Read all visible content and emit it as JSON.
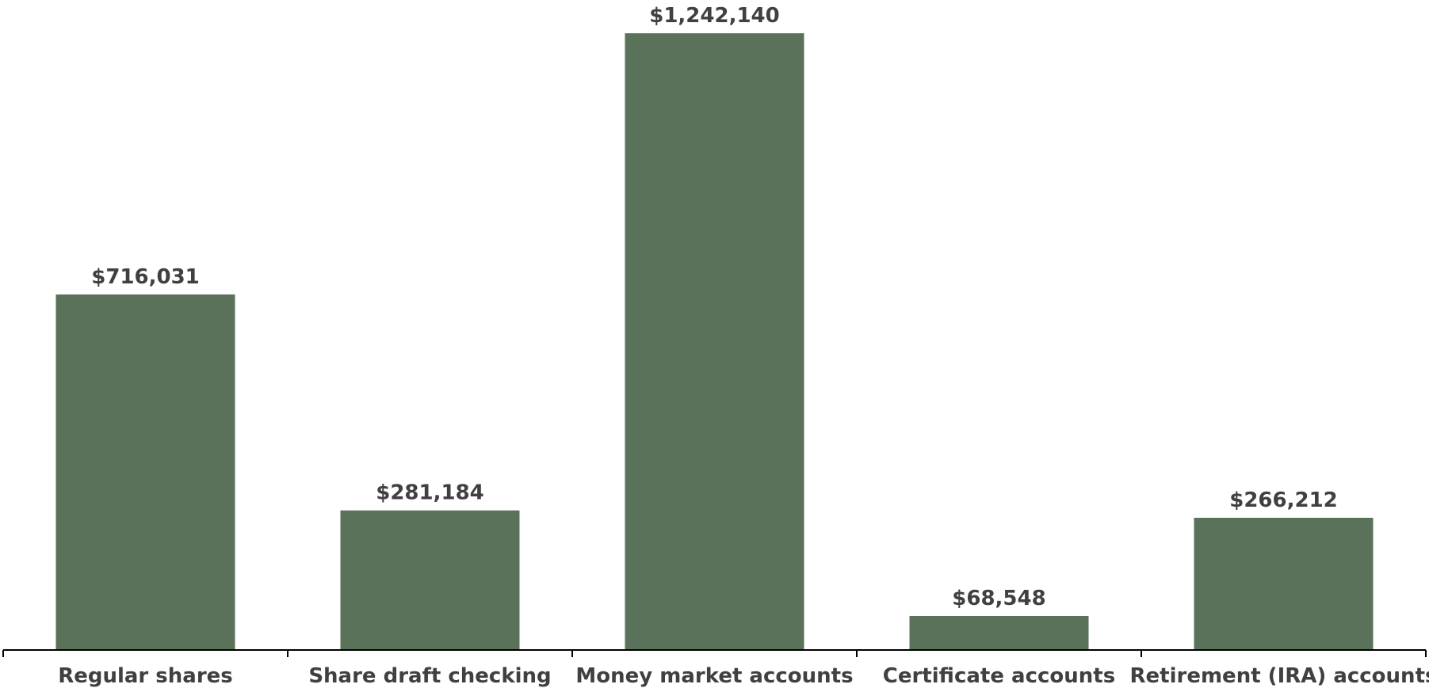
{
  "chart_data": {
    "type": "bar",
    "categories": [
      "Regular shares",
      "Share draft checking",
      "Money market accounts",
      "Certificate accounts",
      "Retirement (IRA) accounts"
    ],
    "values": [
      716031,
      281184,
      1242140,
      68548,
      266212
    ],
    "data_labels": [
      "$716,031",
      "$281,184",
      "$1,242,140",
      "$68,548",
      "$266,212"
    ],
    "title": "",
    "xlabel": "",
    "ylabel": "",
    "ylim": [
      0,
      1242140
    ],
    "grid": false,
    "legend": "none",
    "bar_color": "#5a7259"
  }
}
